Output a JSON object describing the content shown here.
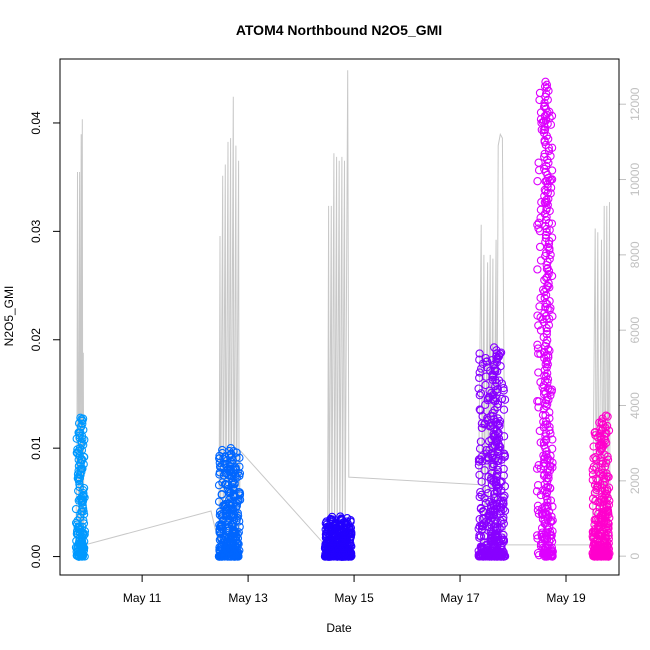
{
  "chart_data": {
    "type": "scatter",
    "title": "ATOM4 Northbound N2O5_GMI",
    "xlabel": "Date",
    "ylabel": "N2O5_GMI",
    "x_ticks": [
      "May 11",
      "May 13",
      "May 15",
      "May 17",
      "May 19"
    ],
    "x_tick_days": [
      11,
      13,
      15,
      17,
      19
    ],
    "xlim_days": [
      9.45,
      20.0
    ],
    "ylim": [
      -0.0017,
      0.0459
    ],
    "y_ticks": [
      0.0,
      0.01,
      0.02,
      0.03,
      0.04
    ],
    "y_tick_labels": [
      "0.00",
      "0.01",
      "0.02",
      "0.03",
      "0.04"
    ],
    "y2_ticks": [
      0,
      2000,
      4000,
      6000,
      8000,
      10000,
      12000
    ],
    "y2lim": [
      -500,
      13200
    ],
    "y2_color": "#c0c0c0",
    "flights": [
      {
        "color": "#0099ff",
        "x_start": 9.75,
        "x_end": 9.92,
        "y_min": 0.0,
        "y_max": 0.0128
      },
      {
        "color": "#0066ff",
        "x_start": 12.45,
        "x_end": 12.85,
        "y_min": 0.0,
        "y_max": 0.01
      },
      {
        "color": "#2200ff",
        "x_start": 14.45,
        "x_end": 14.95,
        "y_min": 0.0,
        "y_max": 0.0037
      },
      {
        "color": "#8800ff",
        "x_start": 17.35,
        "x_end": 17.85,
        "y_min": 0.0,
        "y_max": 0.0193
      },
      {
        "color": "#dd00ff",
        "x_start": 18.45,
        "x_end": 18.75,
        "y_min": 0.0,
        "y_max": 0.0438
      },
      {
        "color": "#ff00cc",
        "x_start": 19.5,
        "x_end": 19.82,
        "y_min": 0.0,
        "y_max": 0.013
      }
    ],
    "altitude_series": {
      "color": "#c8c8c8",
      "points": [
        [
          9.75,
          300
        ],
        [
          9.77,
          3200
        ],
        [
          9.78,
          10200
        ],
        [
          9.8,
          200
        ],
        [
          9.82,
          10200
        ],
        [
          9.83,
          300
        ],
        [
          9.85,
          11200
        ],
        [
          9.86,
          300
        ],
        [
          9.87,
          11600
        ],
        [
          9.88,
          300
        ],
        [
          9.89,
          5400
        ],
        [
          9.9,
          300
        ],
        [
          9.92,
          300
        ],
        [
          12.3,
          1200
        ],
        [
          12.45,
          300
        ],
        [
          12.47,
          8500
        ],
        [
          12.48,
          300
        ],
        [
          12.52,
          10100
        ],
        [
          12.53,
          300
        ],
        [
          12.57,
          10400
        ],
        [
          12.58,
          300
        ],
        [
          12.62,
          11000
        ],
        [
          12.63,
          300
        ],
        [
          12.67,
          11100
        ],
        [
          12.68,
          300
        ],
        [
          12.72,
          12200
        ],
        [
          12.73,
          300
        ],
        [
          12.77,
          10900
        ],
        [
          12.78,
          300
        ],
        [
          12.82,
          10500
        ],
        [
          12.83,
          300
        ],
        [
          12.85,
          2800
        ],
        [
          14.45,
          300
        ],
        [
          14.5,
          300
        ],
        [
          14.52,
          9300
        ],
        [
          14.53,
          300
        ],
        [
          14.57,
          9300
        ],
        [
          14.58,
          300
        ],
        [
          14.62,
          10700
        ],
        [
          14.63,
          300
        ],
        [
          14.67,
          10600
        ],
        [
          14.68,
          300
        ],
        [
          14.72,
          10500
        ],
        [
          14.73,
          300
        ],
        [
          14.77,
          10600
        ],
        [
          14.78,
          300
        ],
        [
          14.82,
          10500
        ],
        [
          14.83,
          300
        ],
        [
          14.88,
          12900
        ],
        [
          14.9,
          2100
        ],
        [
          17.35,
          1900
        ],
        [
          17.4,
          8800
        ],
        [
          17.42,
          300
        ],
        [
          17.45,
          8000
        ],
        [
          17.47,
          300
        ],
        [
          17.52,
          7800
        ],
        [
          17.53,
          300
        ],
        [
          17.57,
          8000
        ],
        [
          17.58,
          300
        ],
        [
          17.62,
          7900
        ],
        [
          17.63,
          300
        ],
        [
          17.68,
          8400
        ],
        [
          17.69,
          300
        ],
        [
          17.72,
          10900
        ],
        [
          17.76,
          11200
        ],
        [
          17.8,
          11100
        ],
        [
          17.85,
          300
        ],
        [
          18.45,
          300
        ],
        [
          18.55,
          300
        ],
        [
          19.5,
          300
        ],
        [
          19.55,
          8700
        ],
        [
          19.57,
          300
        ],
        [
          19.6,
          8600
        ],
        [
          19.62,
          300
        ],
        [
          19.67,
          8400
        ],
        [
          19.69,
          300
        ],
        [
          19.72,
          9300
        ],
        [
          19.74,
          300
        ],
        [
          19.77,
          9300
        ],
        [
          19.79,
          300
        ],
        [
          19.82,
          9400
        ],
        [
          19.83,
          300
        ]
      ]
    }
  }
}
